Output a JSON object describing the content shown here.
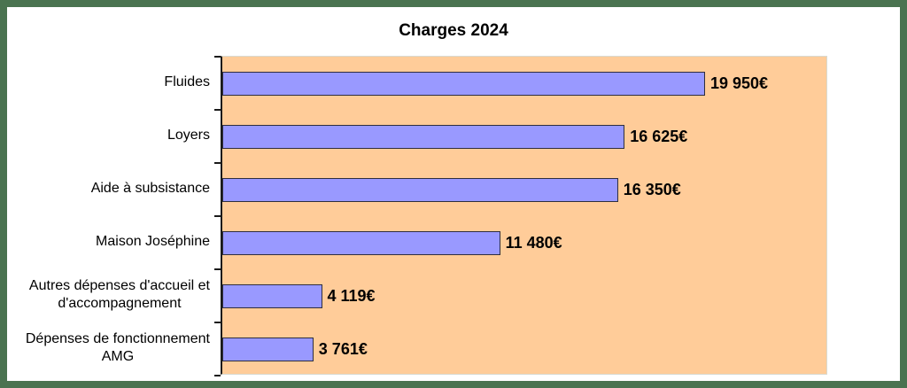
{
  "frame": {
    "border_color": "#4a7350",
    "background": "#ffffff"
  },
  "chart_data": {
    "type": "bar",
    "orientation": "horizontal",
    "title": "Charges 2024",
    "categories": [
      "Fluides",
      "Loyers",
      "Aide à subsistance",
      "Maison Joséphine",
      "Autres dépenses d'accueil et\nd'accompagnement",
      "Dépenses de fonctionnement\nAMG"
    ],
    "values": [
      19950,
      16625,
      16350,
      11480,
      4119,
      3761
    ],
    "value_labels": [
      "19 950€",
      "16 625€",
      "16 350€",
      "11 480€",
      "4 119€",
      "3 761€"
    ],
    "xlabel": "",
    "ylabel": "",
    "xlim": [
      0,
      25000
    ],
    "grid": false,
    "legend": false,
    "colors": {
      "bar_fill": "#9999ff",
      "bar_border": "#2e2e3e",
      "plot_background": "#ffcc99",
      "plot_border": "#d9d9d0",
      "axis": "#1a1a1a",
      "text": "#000000"
    }
  }
}
